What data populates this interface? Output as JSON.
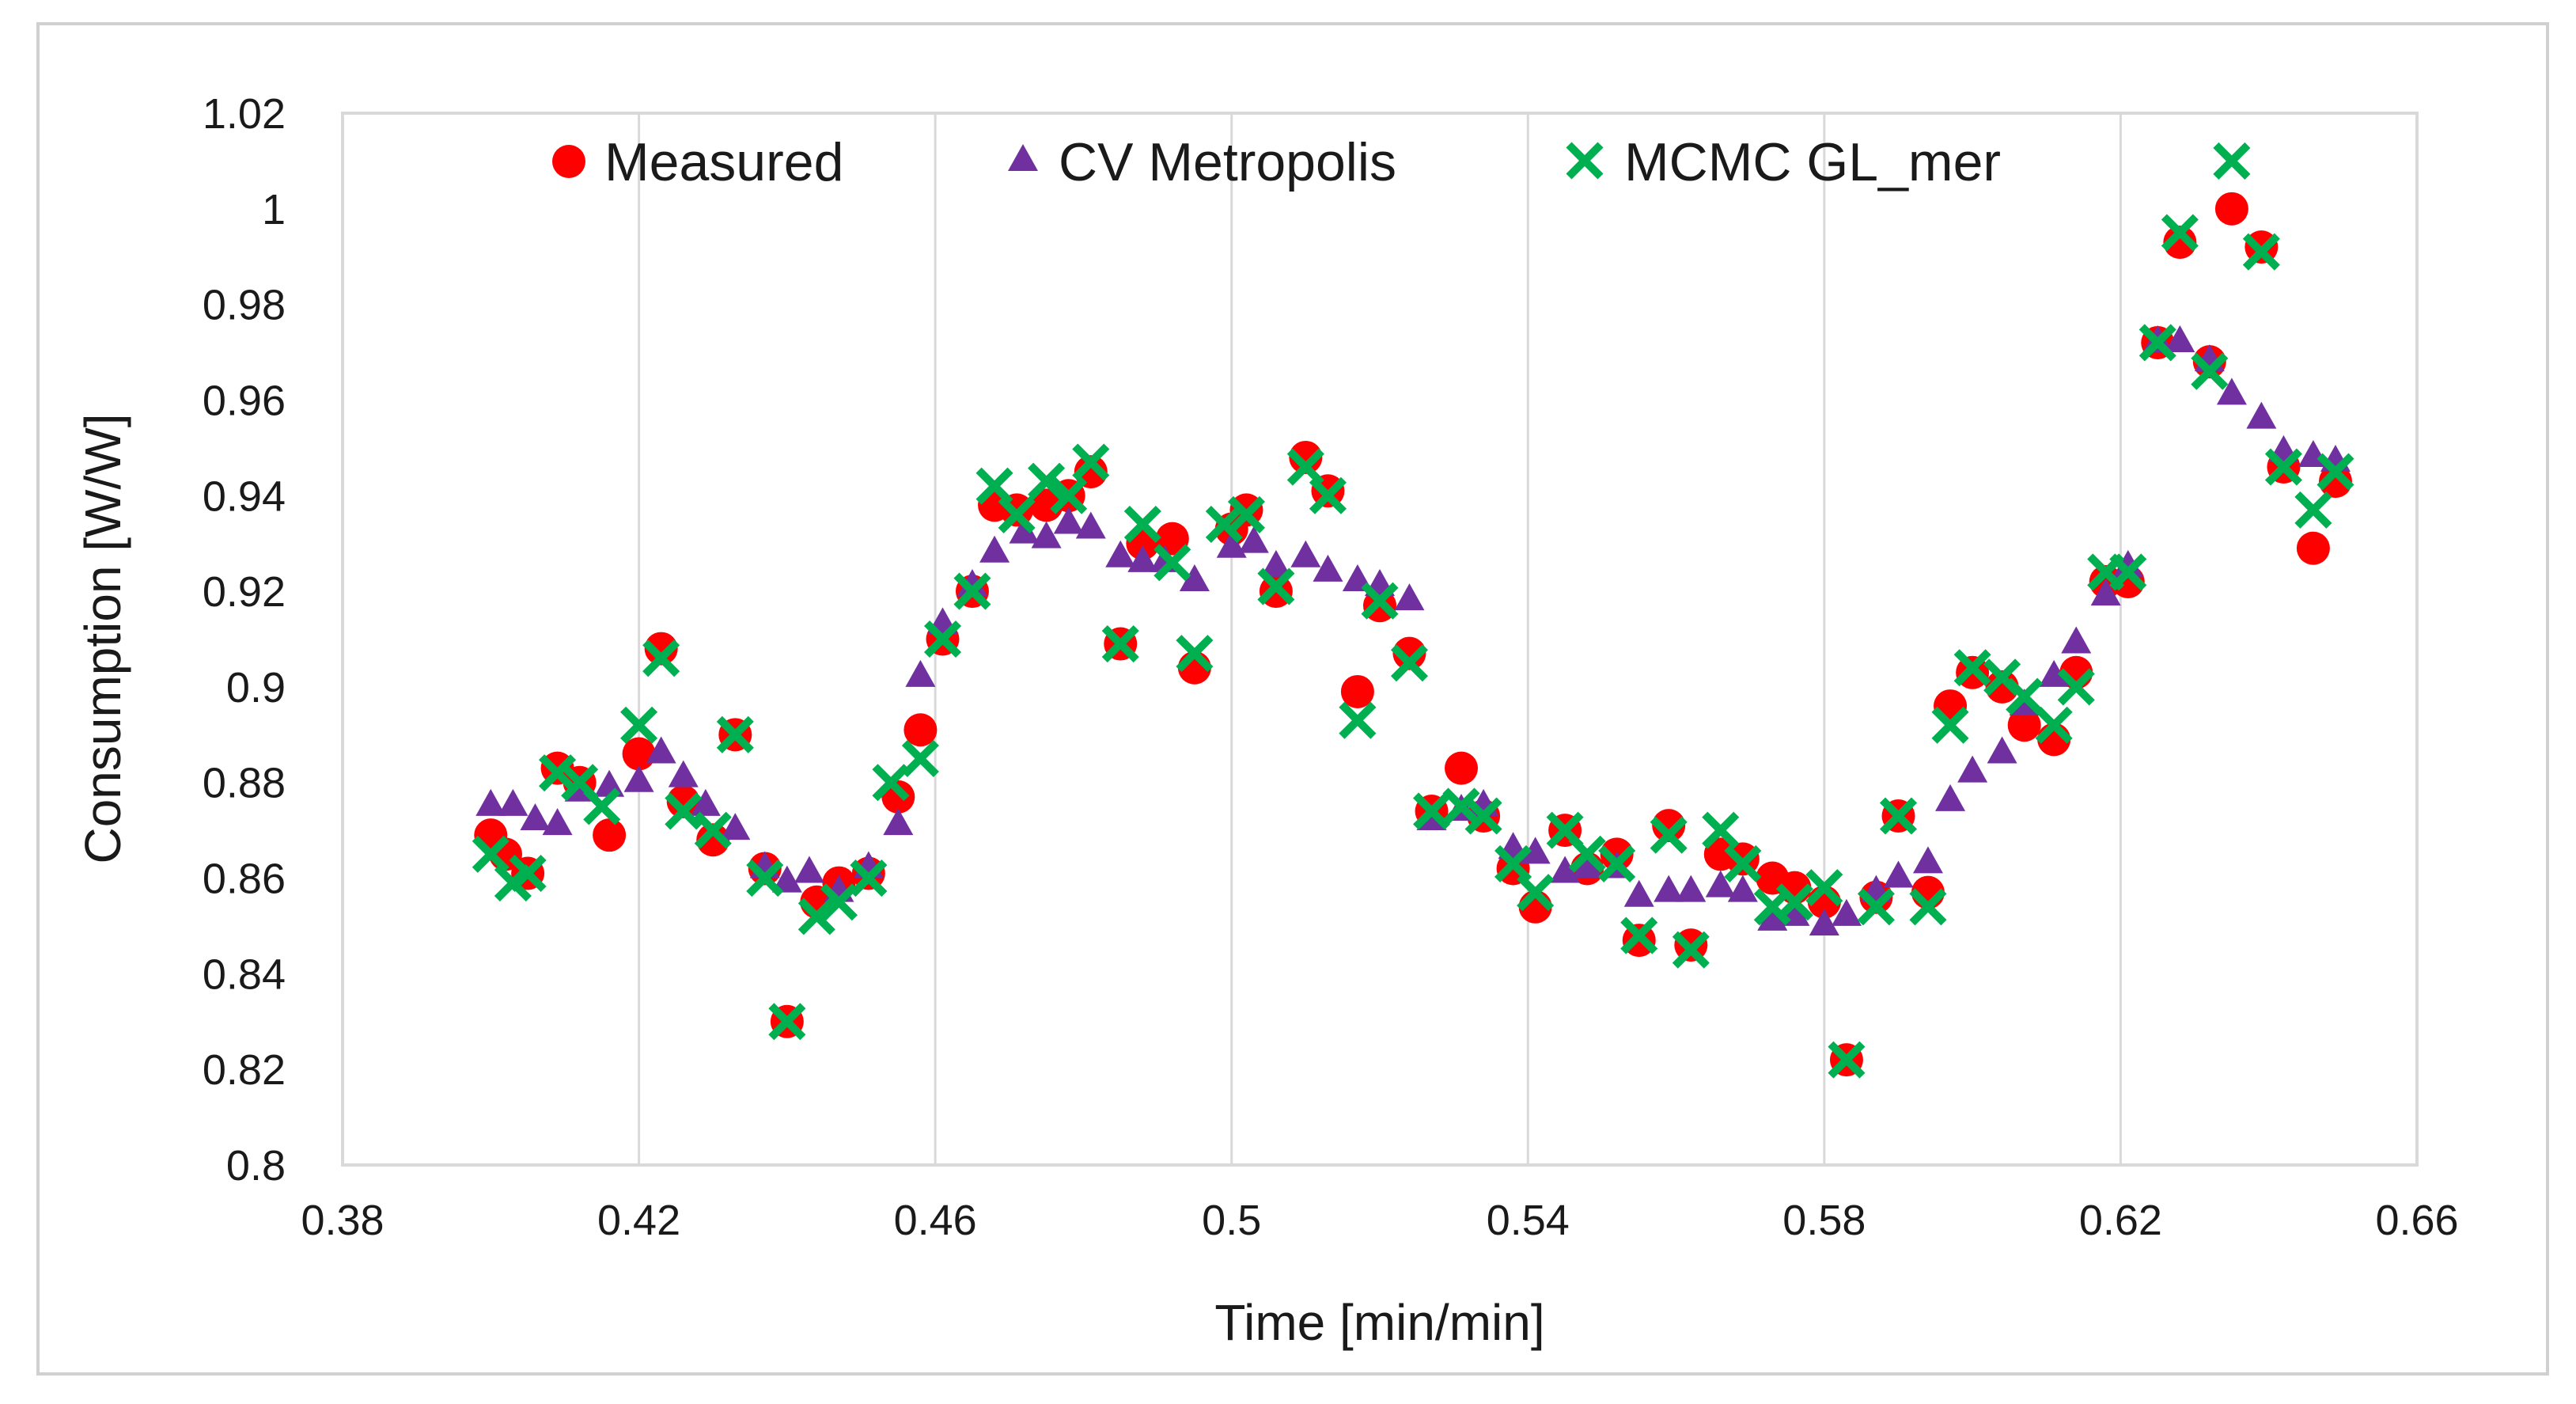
{
  "chart_data": {
    "type": "scatter",
    "title": "",
    "xlabel": "Time [min/min]",
    "ylabel": "Consumption [W/W]",
    "xlim": [
      0.38,
      0.66
    ],
    "ylim": [
      0.8,
      1.02
    ],
    "x_ticks": [
      0.38,
      0.42,
      0.46,
      0.5,
      0.54,
      0.58,
      0.62,
      0.66
    ],
    "x_tick_labels": [
      "0.38",
      "0.42",
      "0.46",
      "0.5",
      "0.54",
      "0.58",
      "0.62",
      "0.66"
    ],
    "y_ticks": [
      0.8,
      0.82,
      0.84,
      0.86,
      0.88,
      0.9,
      0.92,
      0.94,
      0.96,
      0.98,
      1.0,
      1.02
    ],
    "y_tick_labels": [
      "0.8",
      "0.82",
      "0.84",
      "0.86",
      "0.88",
      "0.9",
      "0.92",
      "0.94",
      "0.96",
      "0.98",
      "1",
      "1.02"
    ],
    "grid": "vertical",
    "legend_position": "top",
    "series": [
      {
        "name": "Measured",
        "marker": "circle",
        "color": "#ff0000",
        "x": [
          0.4,
          0.402,
          0.405,
          0.409,
          0.412,
          0.416,
          0.42,
          0.423,
          0.426,
          0.43,
          0.433,
          0.437,
          0.44,
          0.444,
          0.447,
          0.451,
          0.455,
          0.458,
          0.461,
          0.465,
          0.468,
          0.471,
          0.475,
          0.478,
          0.481,
          0.485,
          0.488,
          0.492,
          0.495,
          0.5,
          0.502,
          0.506,
          0.51,
          0.513,
          0.517,
          0.52,
          0.524,
          0.527,
          0.531,
          0.534,
          0.538,
          0.541,
          0.545,
          0.548,
          0.552,
          0.555,
          0.559,
          0.562,
          0.566,
          0.569,
          0.573,
          0.576,
          0.58,
          0.583,
          0.587,
          0.59,
          0.594,
          0.597,
          0.6,
          0.604,
          0.607,
          0.611,
          0.614,
          0.618,
          0.621,
          0.625,
          0.628,
          0.632,
          0.635,
          0.639,
          0.642,
          0.646,
          0.649
        ],
        "values": [
          0.869,
          0.865,
          0.861,
          0.883,
          0.88,
          0.869,
          0.886,
          0.908,
          0.876,
          0.868,
          0.89,
          0.862,
          0.83,
          0.855,
          0.859,
          0.861,
          0.877,
          0.891,
          0.91,
          0.92,
          0.938,
          0.937,
          0.938,
          0.94,
          0.945,
          0.909,
          0.93,
          0.931,
          0.904,
          0.933,
          0.937,
          0.92,
          0.948,
          0.941,
          0.899,
          0.917,
          0.907,
          0.874,
          0.883,
          0.873,
          0.862,
          0.854,
          0.87,
          0.862,
          0.865,
          0.847,
          0.871,
          0.846,
          0.865,
          0.864,
          0.86,
          0.858,
          0.855,
          0.822,
          0.856,
          0.873,
          0.857,
          0.896,
          0.903,
          0.9,
          0.892,
          0.889,
          0.903,
          0.922,
          0.922,
          0.972,
          0.993,
          0.968,
          1.0,
          0.992,
          0.946,
          0.929,
          0.943
        ]
      },
      {
        "name": "CV Metropolis",
        "marker": "triangle",
        "color": "#7030a0",
        "x": [
          0.4,
          0.403,
          0.406,
          0.409,
          0.412,
          0.416,
          0.42,
          0.423,
          0.426,
          0.429,
          0.433,
          0.437,
          0.44,
          0.443,
          0.447,
          0.451,
          0.455,
          0.458,
          0.461,
          0.465,
          0.468,
          0.472,
          0.475,
          0.478,
          0.481,
          0.485,
          0.488,
          0.491,
          0.495,
          0.5,
          0.503,
          0.506,
          0.51,
          0.513,
          0.517,
          0.52,
          0.524,
          0.527,
          0.531,
          0.534,
          0.538,
          0.541,
          0.545,
          0.548,
          0.552,
          0.555,
          0.559,
          0.562,
          0.566,
          0.569,
          0.573,
          0.576,
          0.58,
          0.583,
          0.587,
          0.59,
          0.594,
          0.597,
          0.6,
          0.604,
          0.607,
          0.611,
          0.614,
          0.618,
          0.621,
          0.625,
          0.628,
          0.632,
          0.635,
          0.639,
          0.642,
          0.646,
          0.649
        ],
        "values": [
          0.875,
          0.875,
          0.872,
          0.871,
          0.878,
          0.879,
          0.88,
          0.886,
          0.881,
          0.875,
          0.87,
          0.862,
          0.859,
          0.861,
          0.857,
          0.862,
          0.871,
          0.902,
          0.913,
          0.921,
          0.928,
          0.932,
          0.931,
          0.934,
          0.933,
          0.927,
          0.926,
          0.926,
          0.922,
          0.929,
          0.93,
          0.925,
          0.927,
          0.924,
          0.922,
          0.921,
          0.918,
          0.872,
          0.874,
          0.875,
          0.866,
          0.865,
          0.861,
          0.862,
          0.862,
          0.856,
          0.857,
          0.857,
          0.858,
          0.857,
          0.851,
          0.852,
          0.85,
          0.852,
          0.857,
          0.86,
          0.863,
          0.876,
          0.882,
          0.886,
          0.896,
          0.902,
          0.909,
          0.919,
          0.925,
          0.972,
          0.972,
          0.968,
          0.961,
          0.956,
          0.949,
          0.948,
          0.947
        ]
      },
      {
        "name": "MCMC GL_mer",
        "marker": "x",
        "color": "#00b050",
        "x": [
          0.4,
          0.403,
          0.405,
          0.409,
          0.412,
          0.415,
          0.42,
          0.423,
          0.426,
          0.43,
          0.433,
          0.437,
          0.44,
          0.444,
          0.447,
          0.451,
          0.454,
          0.458,
          0.461,
          0.465,
          0.468,
          0.471,
          0.475,
          0.478,
          0.481,
          0.485,
          0.488,
          0.492,
          0.495,
          0.499,
          0.502,
          0.506,
          0.51,
          0.513,
          0.517,
          0.52,
          0.524,
          0.527,
          0.531,
          0.534,
          0.538,
          0.541,
          0.545,
          0.548,
          0.552,
          0.555,
          0.559,
          0.562,
          0.566,
          0.569,
          0.573,
          0.576,
          0.58,
          0.583,
          0.587,
          0.59,
          0.594,
          0.597,
          0.6,
          0.604,
          0.607,
          0.611,
          0.614,
          0.618,
          0.621,
          0.625,
          0.628,
          0.632,
          0.635,
          0.639,
          0.642,
          0.646,
          0.649
        ],
        "values": [
          0.865,
          0.859,
          0.861,
          0.882,
          0.88,
          0.875,
          0.892,
          0.906,
          0.874,
          0.87,
          0.89,
          0.86,
          0.83,
          0.852,
          0.855,
          0.86,
          0.88,
          0.885,
          0.91,
          0.92,
          0.942,
          0.936,
          0.943,
          0.94,
          0.947,
          0.909,
          0.934,
          0.926,
          0.907,
          0.934,
          0.936,
          0.921,
          0.946,
          0.94,
          0.893,
          0.918,
          0.905,
          0.874,
          0.875,
          0.873,
          0.863,
          0.857,
          0.87,
          0.865,
          0.863,
          0.848,
          0.869,
          0.845,
          0.87,
          0.863,
          0.854,
          0.855,
          0.858,
          0.822,
          0.854,
          0.873,
          0.854,
          0.892,
          0.904,
          0.902,
          0.898,
          0.892,
          0.9,
          0.924,
          0.924,
          0.972,
          0.995,
          0.966,
          1.01,
          0.991,
          0.946,
          0.937,
          0.945
        ]
      }
    ]
  }
}
